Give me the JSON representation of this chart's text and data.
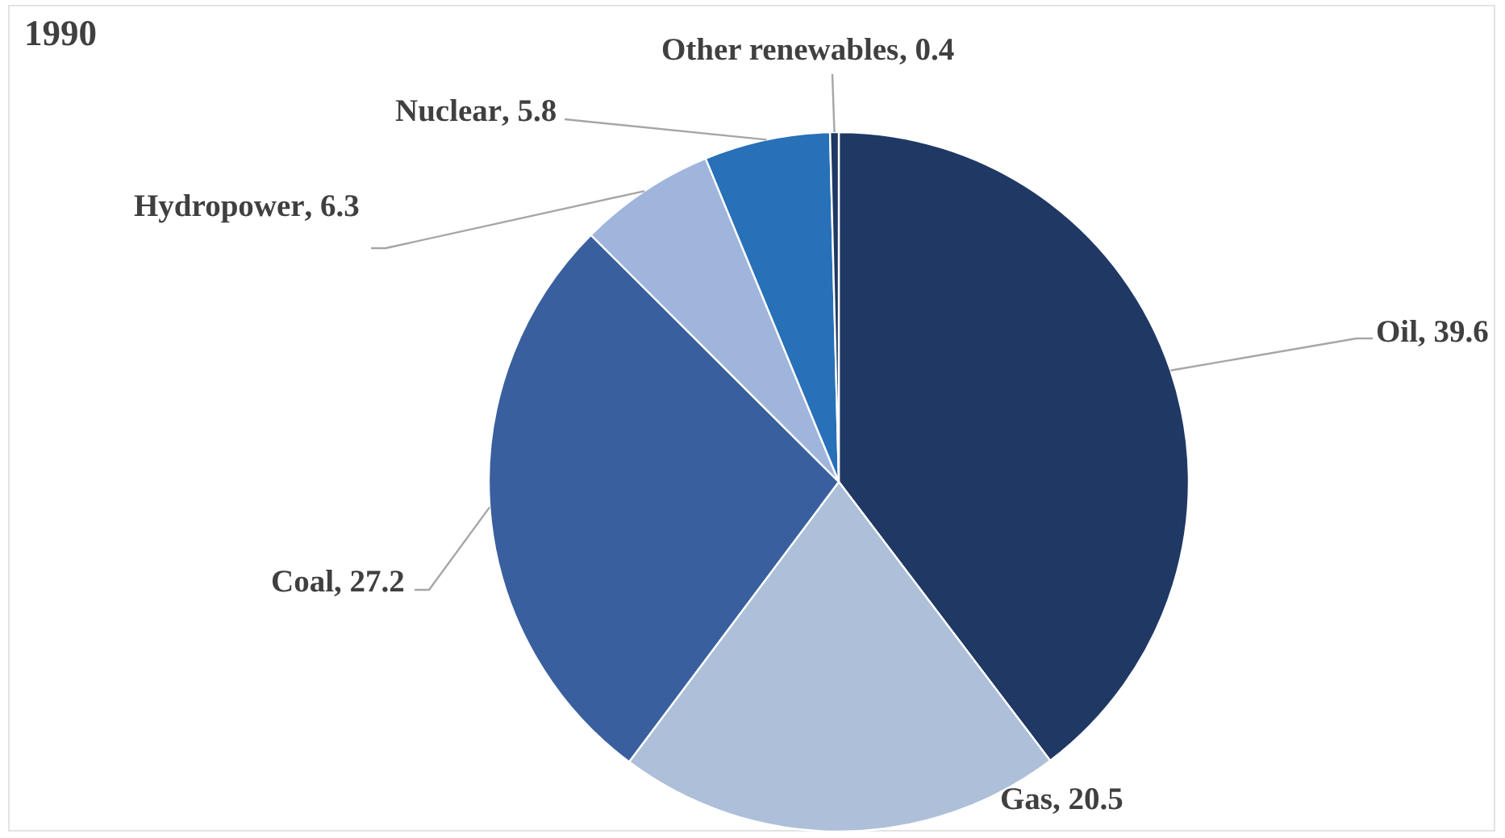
{
  "chart_data": {
    "type": "pie",
    "title": "1990",
    "categories": [
      "Oil",
      "Gas",
      "Coal",
      "Hydropower",
      "Nuclear",
      "Other renewables"
    ],
    "values": [
      39.6,
      20.5,
      27.2,
      6.3,
      5.8,
      0.4
    ],
    "value_labels": [
      ", 39.6",
      ", 20.5",
      ", 27.2",
      ", 6.3",
      ", 5.8",
      ", 0.4"
    ],
    "colors": [
      "#203864",
      "#adbfd9",
      "#3a5f9f",
      "#9fb5db",
      "#2870b8",
      "#1f3864"
    ]
  }
}
